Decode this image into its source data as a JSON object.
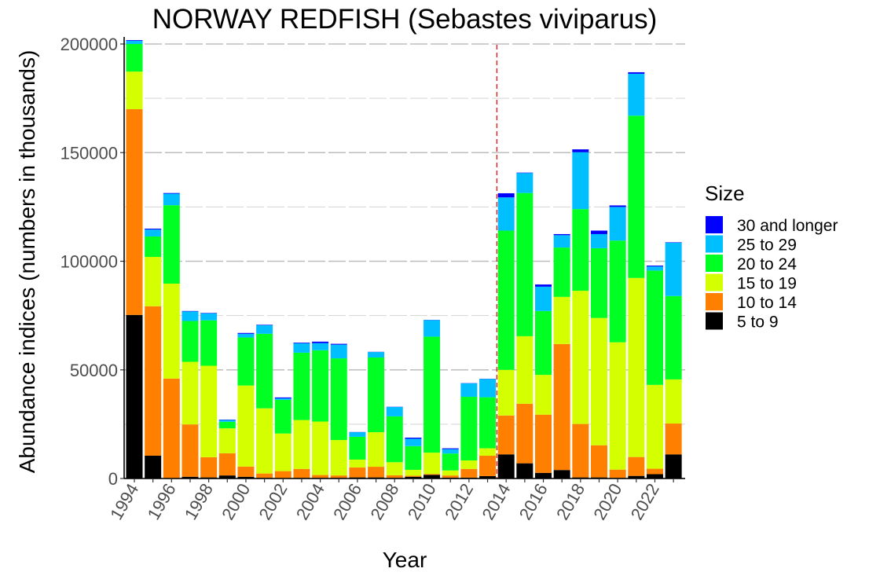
{
  "chart_data": {
    "type": "bar",
    "stacked": true,
    "title": "NORWAY REDFISH (Sebastes viviparus)",
    "xlabel": "Year",
    "ylabel": "Abundance indices (numbers in thousands)",
    "ylim": [
      0,
      203000
    ],
    "yticks": [
      0,
      50000,
      100000,
      150000,
      200000
    ],
    "ytick_labels": [
      "0",
      "50000",
      "100000",
      "150000",
      "200000"
    ],
    "grid": true,
    "legend": {
      "title": "Size",
      "placement": "right"
    },
    "vertical_line": {
      "between": [
        2013,
        2014
      ],
      "color": "#E41A1C",
      "style": "dashed"
    },
    "categories": [
      1994,
      1995,
      1996,
      1997,
      1998,
      1999,
      2000,
      2001,
      2002,
      2003,
      2004,
      2005,
      2006,
      2007,
      2008,
      2009,
      2010,
      2011,
      2012,
      2013,
      2014,
      2015,
      2016,
      2017,
      2018,
      2019,
      2020,
      2021,
      2022,
      2023
    ],
    "xtick_labels": [
      "1994",
      "1996",
      "1998",
      "2000",
      "2002",
      "2004",
      "2006",
      "2008",
      "2010",
      "2012",
      "2014",
      "2016",
      "2018",
      "2020",
      "2022"
    ],
    "series": [
      {
        "name": "5 to 9",
        "color": "#000000",
        "values": [
          75300,
          10500,
          200,
          800,
          500,
          1400,
          800,
          300,
          200,
          300,
          300,
          300,
          500,
          500,
          300,
          800,
          1700,
          400,
          400,
          1100,
          11100,
          7000,
          2600,
          3900,
          500,
          500,
          300,
          1200,
          2000,
          11100
        ]
      },
      {
        "name": "10 to 14",
        "color": "#FF8000",
        "values": [
          94700,
          68800,
          45800,
          24100,
          9300,
          10200,
          4700,
          2000,
          3200,
          4100,
          1300,
          1100,
          4600,
          4900,
          1200,
          500,
          400,
          1000,
          4000,
          9400,
          17900,
          27400,
          26800,
          58000,
          24600,
          14800,
          3800,
          8700,
          2500,
          14200
        ]
      },
      {
        "name": "15 to 19",
        "color": "#D4FF00",
        "values": [
          17300,
          22700,
          43700,
          28800,
          42100,
          11500,
          37300,
          30000,
          17300,
          22500,
          24600,
          16300,
          3600,
          15900,
          6000,
          2700,
          9800,
          2300,
          3900,
          3400,
          21000,
          31100,
          18300,
          21700,
          61300,
          58600,
          58600,
          82400,
          38600,
          20300
        ]
      },
      {
        "name": "20 to 24",
        "color": "#00FF22",
        "values": [
          12700,
          9400,
          36100,
          18800,
          20900,
          3000,
          22100,
          34300,
          15500,
          31000,
          32800,
          37600,
          10500,
          34400,
          21100,
          10900,
          53400,
          7800,
          29300,
          23500,
          64100,
          65900,
          29400,
          22700,
          37600,
          32100,
          46800,
          74700,
          52600,
          38400
        ]
      },
      {
        "name": "25 to 29",
        "color": "#00BFFF",
        "values": [
          1500,
          3200,
          5300,
          4400,
          3200,
          800,
          1700,
          4000,
          700,
          4300,
          3300,
          6300,
          2100,
          2500,
          4300,
          3400,
          7600,
          2000,
          6200,
          8400,
          15300,
          9200,
          11200,
          5700,
          26200,
          6500,
          15500,
          19300,
          1900,
          24500
        ]
      },
      {
        "name": "30 and longer",
        "color": "#0000FF",
        "values": [
          300,
          400,
          300,
          200,
          200,
          200,
          400,
          200,
          400,
          300,
          700,
          400,
          100,
          100,
          100,
          500,
          100,
          400,
          100,
          100,
          1900,
          200,
          1000,
          500,
          1300,
          1600,
          700,
          700,
          400,
          200
        ]
      }
    ]
  }
}
